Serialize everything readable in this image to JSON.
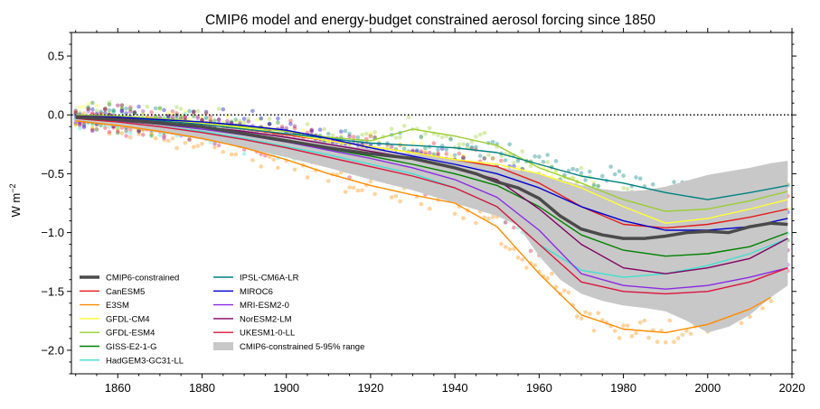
{
  "chart_data": {
    "type": "line",
    "title": "CMIP6 model and energy-budget constrained aerosol forcing since 1850",
    "xlabel": "",
    "ylabel": "W m",
    "ylabel_sup": "−2",
    "xlim": [
      1849,
      2020
    ],
    "ylim": [
      -2.2,
      0.7
    ],
    "x_ticks": [
      1860,
      1880,
      1900,
      1920,
      1940,
      1960,
      1980,
      2000,
      2020
    ],
    "x_tick_labels": [
      "1860",
      "1880",
      "1900",
      "1920",
      "1940",
      "1960",
      "1980",
      "2000",
      "2020"
    ],
    "y_ticks": [
      0.5,
      0.0,
      -0.5,
      -1.0,
      -1.5,
      -2.0
    ],
    "y_tick_labels": [
      "0.5",
      "0.0",
      "−0.5",
      "−1.0",
      "−1.5",
      "−2.0"
    ],
    "zero_line": "dotted",
    "grid": false,
    "legend_position": "lower-left",
    "band": {
      "name": "CMIP6-constrained 5-95% range",
      "color": "#c8c8c8",
      "x": [
        1850,
        1860,
        1870,
        1880,
        1890,
        1900,
        1910,
        1920,
        1930,
        1940,
        1950,
        1955,
        1960,
        1965,
        1970,
        1975,
        1980,
        1985,
        1990,
        1995,
        2000,
        2005,
        2010,
        2015,
        2019
      ],
      "upper": [
        -0.01,
        -0.03,
        -0.06,
        -0.09,
        -0.13,
        -0.18,
        -0.24,
        -0.29,
        -0.33,
        -0.38,
        -0.44,
        -0.47,
        -0.5,
        -0.55,
        -0.6,
        -0.63,
        -0.65,
        -0.64,
        -0.61,
        -0.56,
        -0.51,
        -0.48,
        -0.45,
        -0.41,
        -0.39
      ],
      "lower": [
        -0.05,
        -0.1,
        -0.15,
        -0.21,
        -0.28,
        -0.36,
        -0.45,
        -0.55,
        -0.64,
        -0.75,
        -0.86,
        -0.94,
        -1.2,
        -1.4,
        -1.52,
        -1.58,
        -1.62,
        -1.64,
        -1.67,
        -1.75,
        -1.85,
        -1.8,
        -1.7,
        -1.55,
        -1.45
      ]
    },
    "series": [
      {
        "name": "CMIP6-constrained",
        "color": "#4a4a4a",
        "width": 3.5,
        "x": [
          1850,
          1860,
          1870,
          1880,
          1890,
          1900,
          1910,
          1920,
          1930,
          1940,
          1945,
          1950,
          1955,
          1960,
          1965,
          1970,
          1975,
          1980,
          1985,
          1990,
          1995,
          2000,
          2005,
          2010,
          2015,
          2019
        ],
        "y": [
          -0.02,
          -0.04,
          -0.07,
          -0.1,
          -0.16,
          -0.22,
          -0.28,
          -0.33,
          -0.37,
          -0.45,
          -0.5,
          -0.57,
          -0.62,
          -0.71,
          -0.86,
          -0.97,
          -1.02,
          -1.05,
          -1.05,
          -1.03,
          -1.0,
          -0.99,
          -1.0,
          -0.95,
          -0.92,
          -0.93
        ]
      },
      {
        "name": "CanESM5",
        "color": "#e41a1c",
        "width": 1.4,
        "x": [
          1850,
          1860,
          1870,
          1880,
          1890,
          1900,
          1910,
          1920,
          1930,
          1940,
          1950,
          1960,
          1970,
          1980,
          1990,
          2000,
          2010,
          2019
        ],
        "y": [
          -0.01,
          -0.03,
          -0.05,
          -0.08,
          -0.12,
          -0.17,
          -0.22,
          -0.27,
          -0.32,
          -0.38,
          -0.44,
          -0.58,
          -0.78,
          -0.93,
          -0.96,
          -0.93,
          -0.87,
          -0.8
        ]
      },
      {
        "name": "E3SM",
        "color": "#ff8c00",
        "width": 1.4,
        "x": [
          1850,
          1860,
          1870,
          1880,
          1890,
          1900,
          1910,
          1920,
          1930,
          1940,
          1950,
          1960,
          1970,
          1980,
          1990,
          2000,
          2010,
          2015
        ],
        "y": [
          -0.05,
          -0.09,
          -0.14,
          -0.2,
          -0.28,
          -0.38,
          -0.5,
          -0.6,
          -0.68,
          -0.75,
          -0.95,
          -1.35,
          -1.7,
          -1.82,
          -1.85,
          -1.78,
          -1.65,
          -1.55
        ]
      },
      {
        "name": "GFDL-CM4",
        "color": "#ffff33",
        "width": 1.4,
        "x": [
          1850,
          1860,
          1870,
          1880,
          1890,
          1900,
          1910,
          1920,
          1930,
          1940,
          1950,
          1960,
          1970,
          1980,
          1990,
          2000,
          2010,
          2019
        ],
        "y": [
          0.0,
          -0.02,
          -0.04,
          -0.07,
          -0.11,
          -0.16,
          -0.22,
          -0.27,
          -0.32,
          -0.38,
          -0.42,
          -0.5,
          -0.62,
          -0.78,
          -0.92,
          -0.88,
          -0.8,
          -0.72
        ]
      },
      {
        "name": "GFDL-ESM4",
        "color": "#9acd32",
        "width": 1.4,
        "x": [
          1850,
          1860,
          1870,
          1880,
          1890,
          1900,
          1910,
          1920,
          1930,
          1940,
          1950,
          1960,
          1970,
          1980,
          1990,
          2000,
          2010,
          2019
        ],
        "y": [
          0.0,
          -0.01,
          -0.03,
          -0.06,
          -0.1,
          -0.14,
          -0.19,
          -0.22,
          -0.12,
          -0.18,
          -0.26,
          -0.45,
          -0.58,
          -0.72,
          -0.82,
          -0.8,
          -0.73,
          -0.65
        ]
      },
      {
        "name": "GISS-E2-1-G",
        "color": "#008000",
        "width": 1.4,
        "x": [
          1850,
          1860,
          1870,
          1880,
          1890,
          1900,
          1910,
          1920,
          1930,
          1940,
          1950,
          1960,
          1970,
          1980,
          1990,
          2000,
          2010,
          2019
        ],
        "y": [
          -0.02,
          -0.05,
          -0.08,
          -0.12,
          -0.17,
          -0.23,
          -0.29,
          -0.35,
          -0.42,
          -0.5,
          -0.6,
          -0.78,
          -1.02,
          -1.15,
          -1.2,
          -1.18,
          -1.12,
          -1.0
        ]
      },
      {
        "name": "HadGEM3-GC31-LL",
        "color": "#40e0d0",
        "width": 1.4,
        "x": [
          1850,
          1860,
          1870,
          1880,
          1890,
          1900,
          1910,
          1920,
          1930,
          1940,
          1950,
          1960,
          1970,
          1980,
          1990,
          2000,
          2010,
          2019
        ],
        "y": [
          -0.03,
          -0.06,
          -0.1,
          -0.14,
          -0.2,
          -0.27,
          -0.34,
          -0.42,
          -0.5,
          -0.62,
          -0.78,
          -1.1,
          -1.32,
          -1.38,
          -1.35,
          -1.28,
          -1.18,
          -1.05
        ]
      },
      {
        "name": "IPSL-CM6A-LR",
        "color": "#008080",
        "width": 1.4,
        "x": [
          1850,
          1860,
          1870,
          1880,
          1890,
          1900,
          1910,
          1920,
          1930,
          1940,
          1950,
          1960,
          1970,
          1980,
          1990,
          2000,
          2010,
          2019
        ],
        "y": [
          -0.01,
          -0.03,
          -0.05,
          -0.08,
          -0.12,
          -0.16,
          -0.2,
          -0.24,
          -0.26,
          -0.28,
          -0.32,
          -0.42,
          -0.52,
          -0.58,
          -0.66,
          -0.72,
          -0.66,
          -0.6
        ]
      },
      {
        "name": "MIROC6",
        "color": "#0000cd",
        "width": 1.4,
        "x": [
          1850,
          1860,
          1870,
          1880,
          1890,
          1900,
          1910,
          1920,
          1930,
          1940,
          1950,
          1960,
          1970,
          1980,
          1990,
          2000,
          2010,
          2019
        ],
        "y": [
          -0.01,
          -0.02,
          -0.04,
          -0.06,
          -0.09,
          -0.13,
          -0.2,
          -0.28,
          -0.35,
          -0.42,
          -0.5,
          -0.62,
          -0.78,
          -0.9,
          -0.98,
          -0.98,
          -0.95,
          -0.88
        ]
      },
      {
        "name": "MRI-ESM2-0",
        "color": "#8a2be2",
        "width": 1.4,
        "x": [
          1850,
          1860,
          1870,
          1880,
          1890,
          1900,
          1910,
          1920,
          1930,
          1940,
          1950,
          1960,
          1970,
          1980,
          1990,
          2000,
          2010,
          2019
        ],
        "y": [
          -0.02,
          -0.05,
          -0.08,
          -0.12,
          -0.17,
          -0.23,
          -0.3,
          -0.37,
          -0.45,
          -0.55,
          -0.7,
          -0.98,
          -1.35,
          -1.45,
          -1.48,
          -1.45,
          -1.38,
          -1.3
        ]
      },
      {
        "name": "NorESM2-LM",
        "color": "#800060",
        "width": 1.4,
        "x": [
          1850,
          1860,
          1870,
          1880,
          1890,
          1900,
          1910,
          1920,
          1930,
          1940,
          1950,
          1960,
          1970,
          1980,
          1990,
          2000,
          2010,
          2019
        ],
        "y": [
          -0.01,
          -0.03,
          -0.06,
          -0.1,
          -0.14,
          -0.19,
          -0.25,
          -0.31,
          -0.37,
          -0.45,
          -0.55,
          -0.8,
          -1.1,
          -1.3,
          -1.35,
          -1.3,
          -1.22,
          -1.05
        ]
      },
      {
        "name": "UKESM1-0-LL",
        "color": "#dc143c",
        "width": 1.4,
        "x": [
          1850,
          1860,
          1870,
          1880,
          1890,
          1900,
          1910,
          1920,
          1930,
          1940,
          1950,
          1960,
          1970,
          1980,
          1990,
          2000,
          2010,
          2019
        ],
        "y": [
          -0.03,
          -0.06,
          -0.1,
          -0.15,
          -0.21,
          -0.28,
          -0.36,
          -0.44,
          -0.52,
          -0.62,
          -0.78,
          -1.1,
          -1.42,
          -1.5,
          -1.52,
          -1.5,
          -1.42,
          -1.3
        ]
      }
    ]
  }
}
